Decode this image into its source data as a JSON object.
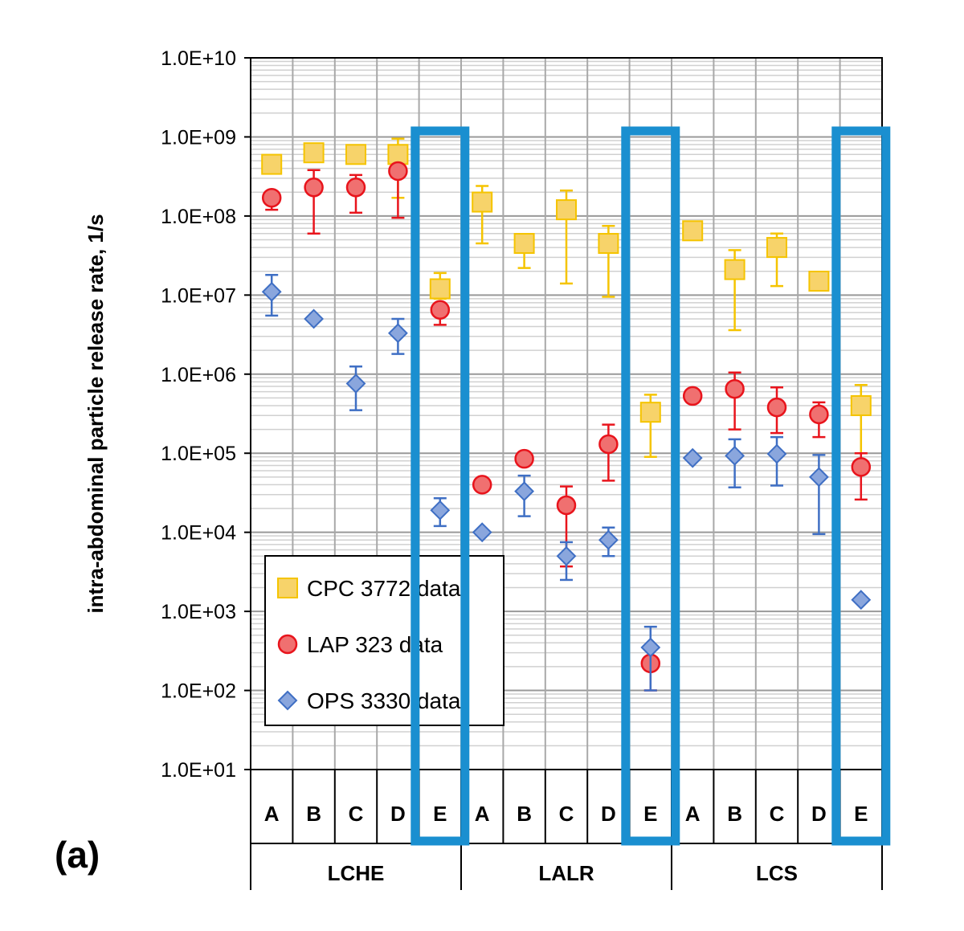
{
  "panel_label": "(a)",
  "chart_data": {
    "type": "scatter",
    "ylabel": "intra-abdominal  particle  release rate, 1/s",
    "yscale": "log",
    "ylim": [
      10,
      10000000000
    ],
    "yticks": [
      10,
      100,
      1000,
      10000,
      100000,
      1000000,
      10000000,
      100000000,
      1000000000,
      10000000000
    ],
    "ytick_labels": [
      "1.0E+01",
      "1.0E+02",
      "1.0E+03",
      "1.0E+04",
      "1.0E+05",
      "1.0E+06",
      "1.0E+07",
      "1.0E+08",
      "1.0E+09",
      "1.0E+10"
    ],
    "grid": true,
    "legend_position": "bottom-left",
    "groups": [
      {
        "name": "LCHE",
        "categories": [
          "A",
          "B",
          "C",
          "D",
          "E"
        ]
      },
      {
        "name": "LALR",
        "categories": [
          "A",
          "B",
          "C",
          "D",
          "E"
        ]
      },
      {
        "name": "LCS",
        "categories": [
          "A",
          "B",
          "C",
          "D",
          "E"
        ]
      }
    ],
    "highlighted_category": "E",
    "highlight_color": "#1a8fd0",
    "series": [
      {
        "name": "CPC 3772 data",
        "marker": "square",
        "color": "#f5c400",
        "fill": "#f7d36a",
        "values": [
          450000000,
          630000000,
          600000000,
          600000000,
          12000000,
          150000000,
          45000000,
          120000000,
          45000000,
          330000,
          65000000,
          21000000,
          40000000,
          15000000,
          400000
        ],
        "err_low": [
          380000000,
          630000000,
          600000000,
          170000000,
          9000000,
          45000000,
          22000000,
          14000000,
          9500000,
          90000,
          58000000,
          3600000,
          13000000,
          15000000,
          100000
        ],
        "err_high": [
          550000000,
          630000000,
          750000000,
          950000000,
          19000000,
          240000000,
          45000000,
          210000000,
          75000000,
          550000,
          75000000,
          37000000,
          60000000,
          15000000,
          730000
        ]
      },
      {
        "name": "LAP 323 data",
        "marker": "circle",
        "color": "#e8141c",
        "fill": "#f07070",
        "values": [
          170000000,
          230000000,
          230000000,
          370000000,
          6500000,
          40000,
          85000,
          22000,
          130000,
          220,
          530000,
          650000,
          380000,
          310000,
          67000
        ],
        "err_low": [
          120000000,
          60000000,
          110000000,
          95000000,
          4200000,
          40000,
          85000,
          3700,
          45000,
          100,
          530000,
          200000,
          180000,
          160000,
          26000
        ],
        "err_high": [
          170000000,
          380000000,
          330000000,
          370000000,
          6500000,
          40000,
          100000,
          38000,
          230000,
          220,
          530000,
          1050000,
          680000,
          440000,
          100000
        ]
      },
      {
        "name": "OPS 3330 data",
        "marker": "diamond",
        "color": "#3f6fc4",
        "fill": "#8aa6dd",
        "values": [
          11000000,
          5000000,
          760000,
          3300000,
          19000,
          10000,
          33000,
          5000,
          8000,
          350,
          87000,
          93000,
          98000,
          50000,
          1400
        ],
        "err_low": [
          5500000,
          5000000,
          350000,
          1800000,
          12000,
          10000,
          16000,
          2500,
          5000,
          100,
          87000,
          37000,
          39000,
          9500,
          1400
        ],
        "err_high": [
          18000000,
          5000000,
          1250000,
          5000000,
          27000,
          10000,
          52000,
          7500,
          11500,
          640,
          87000,
          150000,
          160000,
          95000,
          1400
        ]
      }
    ]
  }
}
